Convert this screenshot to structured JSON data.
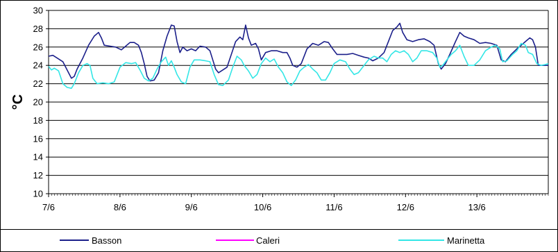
{
  "chart_data": {
    "type": "line",
    "title": "",
    "xlabel": "",
    "ylabel": "°C",
    "ylim": [
      10,
      30
    ],
    "yticks": [
      10,
      12,
      14,
      16,
      18,
      20,
      22,
      24,
      26,
      28,
      30
    ],
    "xlim": [
      0,
      7
    ],
    "xtick_labels": [
      "7/6",
      "8/6",
      "9/6",
      "10/6",
      "11/6",
      "12/6",
      "13/6"
    ],
    "grid": true,
    "legend_position": "bottom",
    "series": [
      {
        "name": "Basson",
        "color": "#1b1f8a",
        "points": [
          [
            0.0,
            25.0
          ],
          [
            0.06,
            25.1
          ],
          [
            0.12,
            24.8
          ],
          [
            0.2,
            24.4
          ],
          [
            0.26,
            23.5
          ],
          [
            0.32,
            22.6
          ],
          [
            0.36,
            22.8
          ],
          [
            0.4,
            23.6
          ],
          [
            0.48,
            24.8
          ],
          [
            0.56,
            26.2
          ],
          [
            0.64,
            27.2
          ],
          [
            0.7,
            27.6
          ],
          [
            0.74,
            27.0
          ],
          [
            0.78,
            26.2
          ],
          [
            0.86,
            26.1
          ],
          [
            0.94,
            26.0
          ],
          [
            1.02,
            25.7
          ],
          [
            1.08,
            26.1
          ],
          [
            1.14,
            26.5
          ],
          [
            1.2,
            26.5
          ],
          [
            1.26,
            26.2
          ],
          [
            1.3,
            25.4
          ],
          [
            1.34,
            24.2
          ],
          [
            1.38,
            22.8
          ],
          [
            1.42,
            22.3
          ],
          [
            1.48,
            22.4
          ],
          [
            1.54,
            23.2
          ],
          [
            1.6,
            25.6
          ],
          [
            1.66,
            27.2
          ],
          [
            1.72,
            28.4
          ],
          [
            1.76,
            28.3
          ],
          [
            1.8,
            26.6
          ],
          [
            1.84,
            25.4
          ],
          [
            1.88,
            26.0
          ],
          [
            1.94,
            25.6
          ],
          [
            2.0,
            25.8
          ],
          [
            2.06,
            25.6
          ],
          [
            2.12,
            26.1
          ],
          [
            2.2,
            26.0
          ],
          [
            2.26,
            25.6
          ],
          [
            2.3,
            24.6
          ],
          [
            2.34,
            23.6
          ],
          [
            2.38,
            23.2
          ],
          [
            2.44,
            23.5
          ],
          [
            2.5,
            23.8
          ],
          [
            2.56,
            25.2
          ],
          [
            2.62,
            26.6
          ],
          [
            2.68,
            27.1
          ],
          [
            2.72,
            26.8
          ],
          [
            2.76,
            28.4
          ],
          [
            2.8,
            27.0
          ],
          [
            2.84,
            26.2
          ],
          [
            2.9,
            26.4
          ],
          [
            2.94,
            25.8
          ],
          [
            2.98,
            24.6
          ],
          [
            3.04,
            25.4
          ],
          [
            3.12,
            25.6
          ],
          [
            3.2,
            25.6
          ],
          [
            3.28,
            25.4
          ],
          [
            3.34,
            25.4
          ],
          [
            3.38,
            24.8
          ],
          [
            3.42,
            24.0
          ],
          [
            3.48,
            23.8
          ],
          [
            3.54,
            24.2
          ],
          [
            3.62,
            25.8
          ],
          [
            3.7,
            26.4
          ],
          [
            3.78,
            26.2
          ],
          [
            3.86,
            26.6
          ],
          [
            3.92,
            26.5
          ],
          [
            3.98,
            25.8
          ],
          [
            4.04,
            25.2
          ],
          [
            4.1,
            25.2
          ],
          [
            4.18,
            25.2
          ],
          [
            4.26,
            25.3
          ],
          [
            4.34,
            25.1
          ],
          [
            4.42,
            24.9
          ],
          [
            4.48,
            24.8
          ],
          [
            4.54,
            24.5
          ],
          [
            4.62,
            24.8
          ],
          [
            4.7,
            25.4
          ],
          [
            4.76,
            26.6
          ],
          [
            4.82,
            27.8
          ],
          [
            4.88,
            28.2
          ],
          [
            4.92,
            28.6
          ],
          [
            4.96,
            27.6
          ],
          [
            5.02,
            26.8
          ],
          [
            5.1,
            26.6
          ],
          [
            5.18,
            26.8
          ],
          [
            5.26,
            26.9
          ],
          [
            5.34,
            26.6
          ],
          [
            5.4,
            26.2
          ],
          [
            5.46,
            24.2
          ],
          [
            5.5,
            23.6
          ],
          [
            5.56,
            24.2
          ],
          [
            5.62,
            25.2
          ],
          [
            5.7,
            26.6
          ],
          [
            5.76,
            27.6
          ],
          [
            5.82,
            27.2
          ],
          [
            5.88,
            27.0
          ],
          [
            5.96,
            26.8
          ],
          [
            6.04,
            26.4
          ],
          [
            6.12,
            26.5
          ],
          [
            6.2,
            26.4
          ],
          [
            6.28,
            26.2
          ],
          [
            6.34,
            24.6
          ],
          [
            6.4,
            24.4
          ],
          [
            6.48,
            25.2
          ],
          [
            6.56,
            25.8
          ],
          [
            6.62,
            26.2
          ],
          [
            6.68,
            26.6
          ],
          [
            6.74,
            27.0
          ],
          [
            6.78,
            26.8
          ],
          [
            6.82,
            26.0
          ],
          [
            6.86,
            24.0
          ],
          [
            6.92,
            24.0
          ],
          [
            7.0,
            24.0
          ]
        ]
      },
      {
        "name": "Caleri",
        "color": "#ff00ff",
        "points": []
      },
      {
        "name": "Marinetta",
        "color": "#33e6e6",
        "points": [
          [
            0.0,
            23.9
          ],
          [
            0.04,
            23.5
          ],
          [
            0.08,
            23.7
          ],
          [
            0.14,
            23.4
          ],
          [
            0.2,
            22.0
          ],
          [
            0.26,
            21.6
          ],
          [
            0.32,
            21.5
          ],
          [
            0.36,
            22.0
          ],
          [
            0.42,
            23.2
          ],
          [
            0.48,
            24.0
          ],
          [
            0.54,
            24.2
          ],
          [
            0.58,
            24.0
          ],
          [
            0.62,
            22.6
          ],
          [
            0.68,
            22.0
          ],
          [
            0.76,
            22.1
          ],
          [
            0.84,
            22.0
          ],
          [
            0.92,
            22.2
          ],
          [
            1.0,
            23.8
          ],
          [
            1.08,
            24.3
          ],
          [
            1.16,
            24.2
          ],
          [
            1.22,
            24.3
          ],
          [
            1.28,
            23.5
          ],
          [
            1.34,
            22.6
          ],
          [
            1.4,
            22.3
          ],
          [
            1.46,
            22.6
          ],
          [
            1.52,
            23.6
          ],
          [
            1.58,
            24.4
          ],
          [
            1.64,
            24.9
          ],
          [
            1.68,
            24.0
          ],
          [
            1.72,
            24.5
          ],
          [
            1.76,
            23.8
          ],
          [
            1.8,
            23.0
          ],
          [
            1.86,
            22.2
          ],
          [
            1.92,
            22.0
          ],
          [
            1.98,
            23.8
          ],
          [
            2.04,
            24.6
          ],
          [
            2.12,
            24.6
          ],
          [
            2.2,
            24.5
          ],
          [
            2.26,
            24.4
          ],
          [
            2.32,
            23.0
          ],
          [
            2.38,
            21.9
          ],
          [
            2.44,
            21.8
          ],
          [
            2.52,
            22.4
          ],
          [
            2.58,
            23.8
          ],
          [
            2.64,
            25.0
          ],
          [
            2.7,
            24.6
          ],
          [
            2.74,
            24.0
          ],
          [
            2.8,
            23.4
          ],
          [
            2.86,
            22.6
          ],
          [
            2.92,
            23.0
          ],
          [
            2.98,
            24.2
          ],
          [
            3.04,
            24.8
          ],
          [
            3.1,
            24.4
          ],
          [
            3.16,
            24.7
          ],
          [
            3.22,
            23.8
          ],
          [
            3.28,
            23.2
          ],
          [
            3.34,
            22.2
          ],
          [
            3.4,
            21.8
          ],
          [
            3.46,
            22.4
          ],
          [
            3.52,
            23.4
          ],
          [
            3.58,
            23.8
          ],
          [
            3.64,
            24.1
          ],
          [
            3.7,
            23.6
          ],
          [
            3.76,
            23.2
          ],
          [
            3.82,
            22.4
          ],
          [
            3.88,
            22.4
          ],
          [
            3.94,
            23.2
          ],
          [
            4.0,
            24.2
          ],
          [
            4.08,
            24.6
          ],
          [
            4.16,
            24.4
          ],
          [
            4.22,
            23.6
          ],
          [
            4.28,
            23.0
          ],
          [
            4.34,
            23.2
          ],
          [
            4.4,
            23.8
          ],
          [
            4.48,
            24.6
          ],
          [
            4.56,
            25.0
          ],
          [
            4.62,
            24.8
          ],
          [
            4.68,
            24.8
          ],
          [
            4.74,
            24.4
          ],
          [
            4.8,
            25.2
          ],
          [
            4.86,
            25.6
          ],
          [
            4.92,
            25.4
          ],
          [
            4.98,
            25.6
          ],
          [
            5.04,
            25.2
          ],
          [
            5.1,
            24.4
          ],
          [
            5.16,
            24.8
          ],
          [
            5.22,
            25.6
          ],
          [
            5.3,
            25.6
          ],
          [
            5.38,
            25.4
          ],
          [
            5.44,
            24.8
          ],
          [
            5.48,
            23.8
          ],
          [
            5.52,
            24.0
          ],
          [
            5.58,
            24.6
          ],
          [
            5.64,
            25.2
          ],
          [
            5.7,
            25.6
          ],
          [
            5.76,
            26.2
          ],
          [
            5.82,
            25.0
          ],
          [
            5.88,
            24.0
          ],
          [
            5.96,
            24.0
          ],
          [
            6.04,
            24.6
          ],
          [
            6.12,
            25.6
          ],
          [
            6.2,
            26.0
          ],
          [
            6.26,
            26.2
          ],
          [
            6.32,
            25.8
          ],
          [
            6.36,
            24.4
          ],
          [
            6.42,
            24.5
          ],
          [
            6.5,
            25.2
          ],
          [
            6.56,
            25.6
          ],
          [
            6.62,
            26.4
          ],
          [
            6.68,
            26.2
          ],
          [
            6.72,
            25.4
          ],
          [
            6.78,
            25.2
          ],
          [
            6.84,
            24.2
          ],
          [
            6.9,
            24.0
          ],
          [
            6.96,
            24.1
          ],
          [
            7.0,
            24.2
          ]
        ]
      }
    ]
  }
}
